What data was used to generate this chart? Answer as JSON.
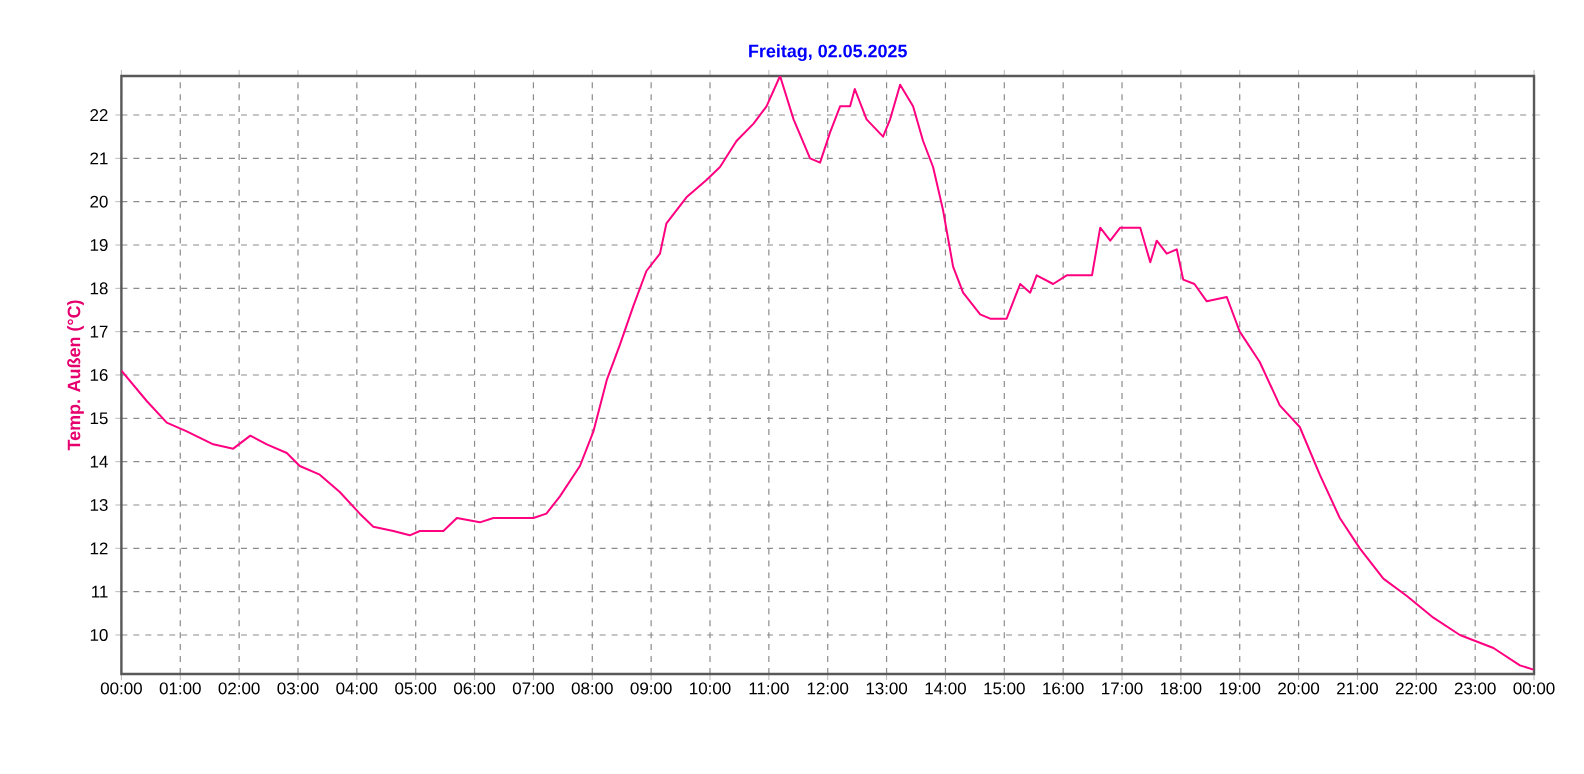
{
  "chart_data": {
    "type": "line",
    "title": "Freitag, 02.05.2025",
    "ylabel": "Temp. Außen (°C)",
    "xlim": [
      0,
      24
    ],
    "ylim": [
      9.1,
      22.9
    ],
    "grid": true,
    "xticks": [
      {
        "value": 0,
        "label": "00:00"
      },
      {
        "value": 1,
        "label": "01:00"
      },
      {
        "value": 2,
        "label": "02:00"
      },
      {
        "value": 3,
        "label": "03:00"
      },
      {
        "value": 4,
        "label": "04:00"
      },
      {
        "value": 5,
        "label": "05:00"
      },
      {
        "value": 6,
        "label": "06:00"
      },
      {
        "value": 7,
        "label": "07:00"
      },
      {
        "value": 8,
        "label": "08:00"
      },
      {
        "value": 9,
        "label": "09:00"
      },
      {
        "value": 10,
        "label": "10:00"
      },
      {
        "value": 11,
        "label": "11:00"
      },
      {
        "value": 12,
        "label": "12:00"
      },
      {
        "value": 13,
        "label": "13:00"
      },
      {
        "value": 14,
        "label": "14:00"
      },
      {
        "value": 15,
        "label": "15:00"
      },
      {
        "value": 16,
        "label": "16:00"
      },
      {
        "value": 17,
        "label": "17:00"
      },
      {
        "value": 18,
        "label": "18:00"
      },
      {
        "value": 19,
        "label": "19:00"
      },
      {
        "value": 20,
        "label": "20:00"
      },
      {
        "value": 21,
        "label": "21:00"
      },
      {
        "value": 22,
        "label": "22:00"
      },
      {
        "value": 23,
        "label": "23:00"
      },
      {
        "value": 24,
        "label": "00:00"
      }
    ],
    "yticks": [
      10,
      11,
      12,
      13,
      14,
      15,
      16,
      17,
      18,
      19,
      20,
      21,
      22
    ],
    "series": [
      {
        "color": "#ff0080",
        "x": [
          0,
          0.43,
          0.77,
          1.11,
          1.56,
          1.9,
          2.19,
          2.47,
          2.81,
          3.03,
          3.37,
          3.71,
          4.05,
          4.28,
          4.62,
          4.9,
          5.07,
          5.47,
          5.7,
          6.09,
          6.32,
          7.0,
          7.22,
          7.45,
          7.79,
          8.02,
          8.25,
          8.47,
          8.7,
          8.92,
          9.15,
          9.26,
          9.6,
          9.94,
          10.17,
          10.45,
          10.74,
          10.96,
          11.19,
          11.42,
          11.7,
          11.87,
          12.04,
          12.21,
          12.38,
          12.46,
          12.66,
          12.94,
          13.06,
          13.23,
          13.45,
          13.62,
          13.79,
          13.96,
          14.13,
          14.3,
          14.59,
          14.76,
          15.04,
          15.27,
          15.44,
          15.55,
          15.83,
          16.06,
          16.17,
          16.49,
          16.63,
          16.8,
          16.97,
          17.19,
          17.31,
          17.48,
          17.59,
          17.76,
          17.93,
          18.04,
          18.23,
          18.44,
          18.78,
          19.0,
          19.34,
          19.68,
          20.02,
          20.36,
          20.7,
          21.04,
          21.44,
          21.84,
          22.29,
          22.74,
          23.31,
          23.76,
          23.99
        ],
        "values": [
          16.1,
          15.4,
          14.9,
          14.7,
          14.4,
          14.3,
          14.6,
          14.4,
          14.2,
          13.9,
          13.7,
          13.3,
          12.8,
          12.5,
          12.4,
          12.3,
          12.4,
          12.4,
          12.7,
          12.6,
          12.7,
          12.7,
          12.8,
          13.2,
          13.9,
          14.7,
          15.9,
          16.7,
          17.6,
          18.4,
          18.8,
          19.5,
          20.1,
          20.5,
          20.8,
          21.4,
          21.8,
          22.2,
          22.9,
          21.9,
          21.0,
          20.9,
          21.6,
          22.2,
          22.2,
          22.6,
          21.9,
          21.5,
          21.9,
          22.7,
          22.2,
          21.4,
          20.8,
          19.8,
          18.5,
          17.9,
          17.4,
          17.3,
          17.3,
          18.1,
          17.9,
          18.3,
          18.1,
          18.3,
          18.3,
          18.3,
          19.4,
          19.1,
          19.4,
          19.4,
          19.4,
          18.6,
          19.1,
          18.8,
          18.9,
          18.2,
          18.1,
          17.7,
          17.8,
          17.0,
          16.3,
          15.3,
          14.8,
          13.7,
          12.7,
          12.0,
          11.3,
          10.9,
          10.4,
          10.0,
          9.7,
          9.3,
          9.2
        ]
      }
    ]
  }
}
